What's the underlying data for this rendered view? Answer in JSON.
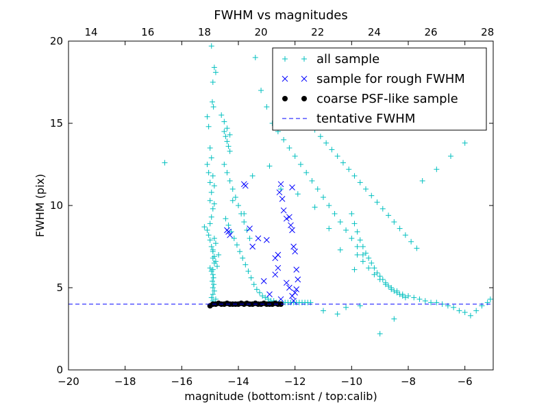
{
  "chart_data": {
    "type": "scatter",
    "title": "FWHM vs magnitudes",
    "xlabel": "magnitude (bottom:isnt / top:calib)",
    "ylabel": "FWHM (pix)",
    "xlim": [
      -20,
      -5
    ],
    "ylim": [
      0,
      20
    ],
    "x_ticks": [
      -20,
      -18,
      -16,
      -14,
      -12,
      -10,
      -8,
      -6
    ],
    "x_tick_labels": [
      "−20",
      "−18",
      "−16",
      "−14",
      "−12",
      "−10",
      "−8",
      "−6"
    ],
    "y_ticks": [
      0,
      5,
      10,
      15,
      20
    ],
    "y_tick_labels": [
      "0",
      "5",
      "10",
      "15",
      "20"
    ],
    "top_xlim": [
      13.2,
      28.2
    ],
    "top_ticks": [
      14,
      16,
      18,
      20,
      22,
      24,
      26,
      28
    ],
    "top_tick_labels": [
      "14",
      "16",
      "18",
      "20",
      "22",
      "24",
      "26",
      "28"
    ],
    "grid": false,
    "legend_position": "top-right",
    "series": [
      {
        "name": "all sample",
        "marker": "plus",
        "color": "#00bfbf",
        "x": [
          -16.6,
          -15.2,
          -15.1,
          -15.05,
          -15.0,
          -14.95,
          -14.9,
          -14.9,
          -14.85,
          -15.1,
          -15.05,
          -15.0,
          -14.95,
          -15.0,
          -14.9,
          -15.1,
          -15.05,
          -15.0,
          -14.95,
          -14.9,
          -14.85,
          -15.0,
          -14.95,
          -14.9,
          -14.88,
          -14.92,
          -14.87,
          -14.9,
          -14.85,
          -14.9,
          -14.95,
          -14.8,
          -14.9,
          -14.85,
          -14.8,
          -14.95,
          -14.92,
          -14.88,
          -14.9,
          -14.85,
          -15.0,
          -14.9,
          -14.85,
          -14.8,
          -14.75,
          -14.95,
          -14.85,
          -14.8,
          -14.7,
          -14.9,
          -14.5,
          -14.45,
          -14.4,
          -14.35,
          -14.3,
          -14.5,
          -14.4,
          -14.3,
          -14.2,
          -14.1,
          -14.0,
          -13.9,
          -13.8,
          -13.7,
          -13.6,
          -14.6,
          -14.5,
          -14.4,
          -14.3,
          -14.45,
          -14.35,
          -14.25,
          -14.15,
          -14.05,
          -13.95,
          -13.85,
          -13.75,
          -13.65,
          -13.55,
          -13.45,
          -13.35,
          -13.25,
          -13.15,
          -13.05,
          -12.95,
          -12.85,
          -12.75,
          -12.65,
          -12.55,
          -12.45,
          -12.35,
          -12.25,
          -12.15,
          -12.05,
          -11.95,
          -11.85,
          -11.75,
          -11.65,
          -11.55,
          -11.45,
          -13.4,
          -13.2,
          -13.0,
          -12.8,
          -12.6,
          -12.4,
          -12.2,
          -12.0,
          -11.8,
          -11.6,
          -11.4,
          -11.2,
          -11.0,
          -10.8,
          -10.6,
          -10.4,
          -10.2,
          -10.0,
          -9.8,
          -9.6,
          -11.5,
          -11.3,
          -11.1,
          -10.9,
          -10.7,
          -10.5,
          -10.3,
          -10.1,
          -9.9,
          -9.7,
          -9.5,
          -9.3,
          -9.1,
          -8.9,
          -8.7,
          -8.5,
          -8.3,
          -8.1,
          -7.9,
          -7.7,
          -10.0,
          -9.9,
          -9.8,
          -9.7,
          -9.6,
          -9.5,
          -9.4,
          -9.3,
          -9.2,
          -9.1,
          -9.0,
          -8.9,
          -8.8,
          -8.7,
          -8.6,
          -8.5,
          -8.4,
          -8.3,
          -8.2,
          -8.1,
          -9.8,
          -9.6,
          -9.4,
          -9.2,
          -9.0,
          -8.8,
          -8.6,
          -8.4,
          -8.2,
          -8.0,
          -7.8,
          -7.6,
          -7.4,
          -7.2,
          -7.0,
          -6.8,
          -6.6,
          -6.4,
          -6.2,
          -6.0,
          -5.8,
          -5.6,
          -5.4,
          -5.2,
          -5.1,
          -7.5,
          -7.0,
          -6.5,
          -6.0,
          -9.0,
          -8.5,
          -10.5,
          -11.0,
          -10.2,
          -9.7,
          -13.8,
          -14.2,
          -13.5,
          -12.9,
          -12.5,
          -11.9,
          -11.3,
          -10.8,
          -10.4,
          -9.9
        ],
        "y": [
          12.6,
          8.7,
          8.5,
          8.2,
          7.9,
          7.5,
          7.2,
          6.8,
          6.5,
          12.5,
          12.0,
          11.4,
          10.8,
          10.3,
          9.8,
          15.4,
          14.8,
          13.5,
          12.9,
          11.8,
          11.2,
          6.2,
          6.0,
          5.8,
          5.6,
          5.4,
          5.2,
          5.0,
          4.8,
          4.6,
          4.4,
          4.3,
          4.2,
          18.4,
          18.1,
          19.7,
          16.3,
          16.0,
          17.5,
          10.1,
          8.9,
          7.3,
          6.9,
          6.6,
          6.3,
          9.3,
          8.0,
          7.7,
          7.0,
          6.1,
          14.5,
          14.2,
          13.9,
          13.6,
          13.3,
          12.5,
          12.0,
          11.5,
          11.0,
          10.5,
          10.0,
          9.5,
          9.0,
          8.5,
          8.0,
          15.5,
          15.1,
          14.7,
          14.3,
          9.2,
          8.8,
          8.4,
          8.0,
          7.6,
          7.2,
          6.8,
          6.4,
          6.0,
          5.6,
          5.2,
          4.9,
          4.7,
          4.5,
          4.4,
          4.3,
          4.2,
          4.2,
          4.1,
          4.1,
          4.1,
          4.1,
          4.1,
          4.1,
          4.1,
          4.1,
          4.1,
          4.1,
          4.1,
          4.1,
          4.1,
          19.0,
          17.0,
          16.0,
          15.0,
          14.5,
          14.0,
          13.5,
          13.0,
          12.5,
          12.0,
          11.5,
          11.0,
          10.5,
          10.0,
          9.5,
          9.0,
          8.5,
          8.0,
          7.5,
          7.0,
          15.0,
          14.6,
          14.2,
          13.8,
          13.4,
          13.0,
          12.6,
          12.2,
          11.8,
          11.4,
          11.0,
          10.6,
          10.2,
          9.8,
          9.4,
          9.0,
          8.6,
          8.2,
          7.8,
          7.4,
          9.5,
          8.9,
          8.4,
          7.9,
          7.5,
          7.1,
          6.8,
          6.5,
          6.2,
          5.9,
          5.7,
          5.5,
          5.3,
          5.1,
          4.9,
          4.8,
          4.7,
          4.6,
          4.5,
          4.4,
          7.0,
          6.6,
          6.2,
          5.8,
          5.5,
          5.2,
          5.0,
          4.8,
          4.6,
          4.5,
          4.4,
          4.3,
          4.2,
          4.1,
          4.1,
          4.0,
          3.9,
          3.8,
          3.6,
          3.5,
          3.3,
          3.6,
          3.9,
          4.1,
          4.3,
          11.5,
          12.2,
          13.0,
          13.8,
          2.2,
          3.1,
          3.4,
          3.6,
          3.8,
          3.9,
          9.5,
          10.3,
          11.8,
          12.4,
          11.0,
          10.7,
          9.9,
          8.6,
          7.3,
          6.1
        ]
      },
      {
        "name": "sample for rough FWHM",
        "marker": "x",
        "color": "#0000ff",
        "x": [
          -14.4,
          -14.35,
          -14.3,
          -13.8,
          -13.75,
          -13.6,
          -13.5,
          -13.3,
          -13.1,
          -12.9,
          -12.7,
          -12.6,
          -12.55,
          -12.5,
          -12.45,
          -12.4,
          -12.3,
          -12.2,
          -12.15,
          -12.1,
          -12.05,
          -12.0,
          -11.95,
          -11.9,
          -12.3,
          -12.2,
          -12.1,
          -12.0,
          -11.95,
          -12.05,
          -12.6,
          -12.5,
          -12.7,
          -13.0,
          -12.1
        ],
        "y": [
          8.5,
          8.4,
          8.2,
          11.3,
          11.2,
          8.6,
          7.5,
          8.0,
          5.4,
          4.6,
          6.8,
          7.0,
          10.8,
          11.3,
          10.4,
          9.7,
          9.2,
          9.3,
          8.8,
          8.5,
          7.5,
          7.2,
          6.1,
          5.5,
          5.3,
          5.0,
          4.5,
          4.7,
          4.9,
          4.2,
          6.2,
          4.3,
          5.8,
          7.9,
          11.1
        ]
      },
      {
        "name": "coarse PSF-like sample",
        "marker": "circle",
        "color": "#000000",
        "x": [
          -15.0,
          -14.9,
          -14.8,
          -14.7,
          -14.6,
          -14.5,
          -14.4,
          -14.3,
          -14.2,
          -14.1,
          -14.0,
          -13.9,
          -13.8,
          -13.7,
          -13.6,
          -13.5,
          -13.4,
          -13.3,
          -13.2,
          -13.1,
          -13.0,
          -12.9,
          -12.8,
          -12.7,
          -12.6,
          -12.5
        ],
        "y": [
          3.9,
          4.0,
          4.0,
          4.05,
          4.0,
          4.0,
          4.05,
          4.0,
          4.0,
          4.0,
          4.0,
          4.05,
          4.0,
          4.05,
          4.0,
          4.0,
          4.05,
          4.0,
          4.0,
          4.05,
          4.0,
          4.0,
          4.0,
          4.05,
          4.0,
          4.0
        ]
      },
      {
        "name": "tentative FWHM",
        "marker": "dashed-line",
        "color": "#0000ff",
        "y_value": 4.0
      }
    ]
  }
}
